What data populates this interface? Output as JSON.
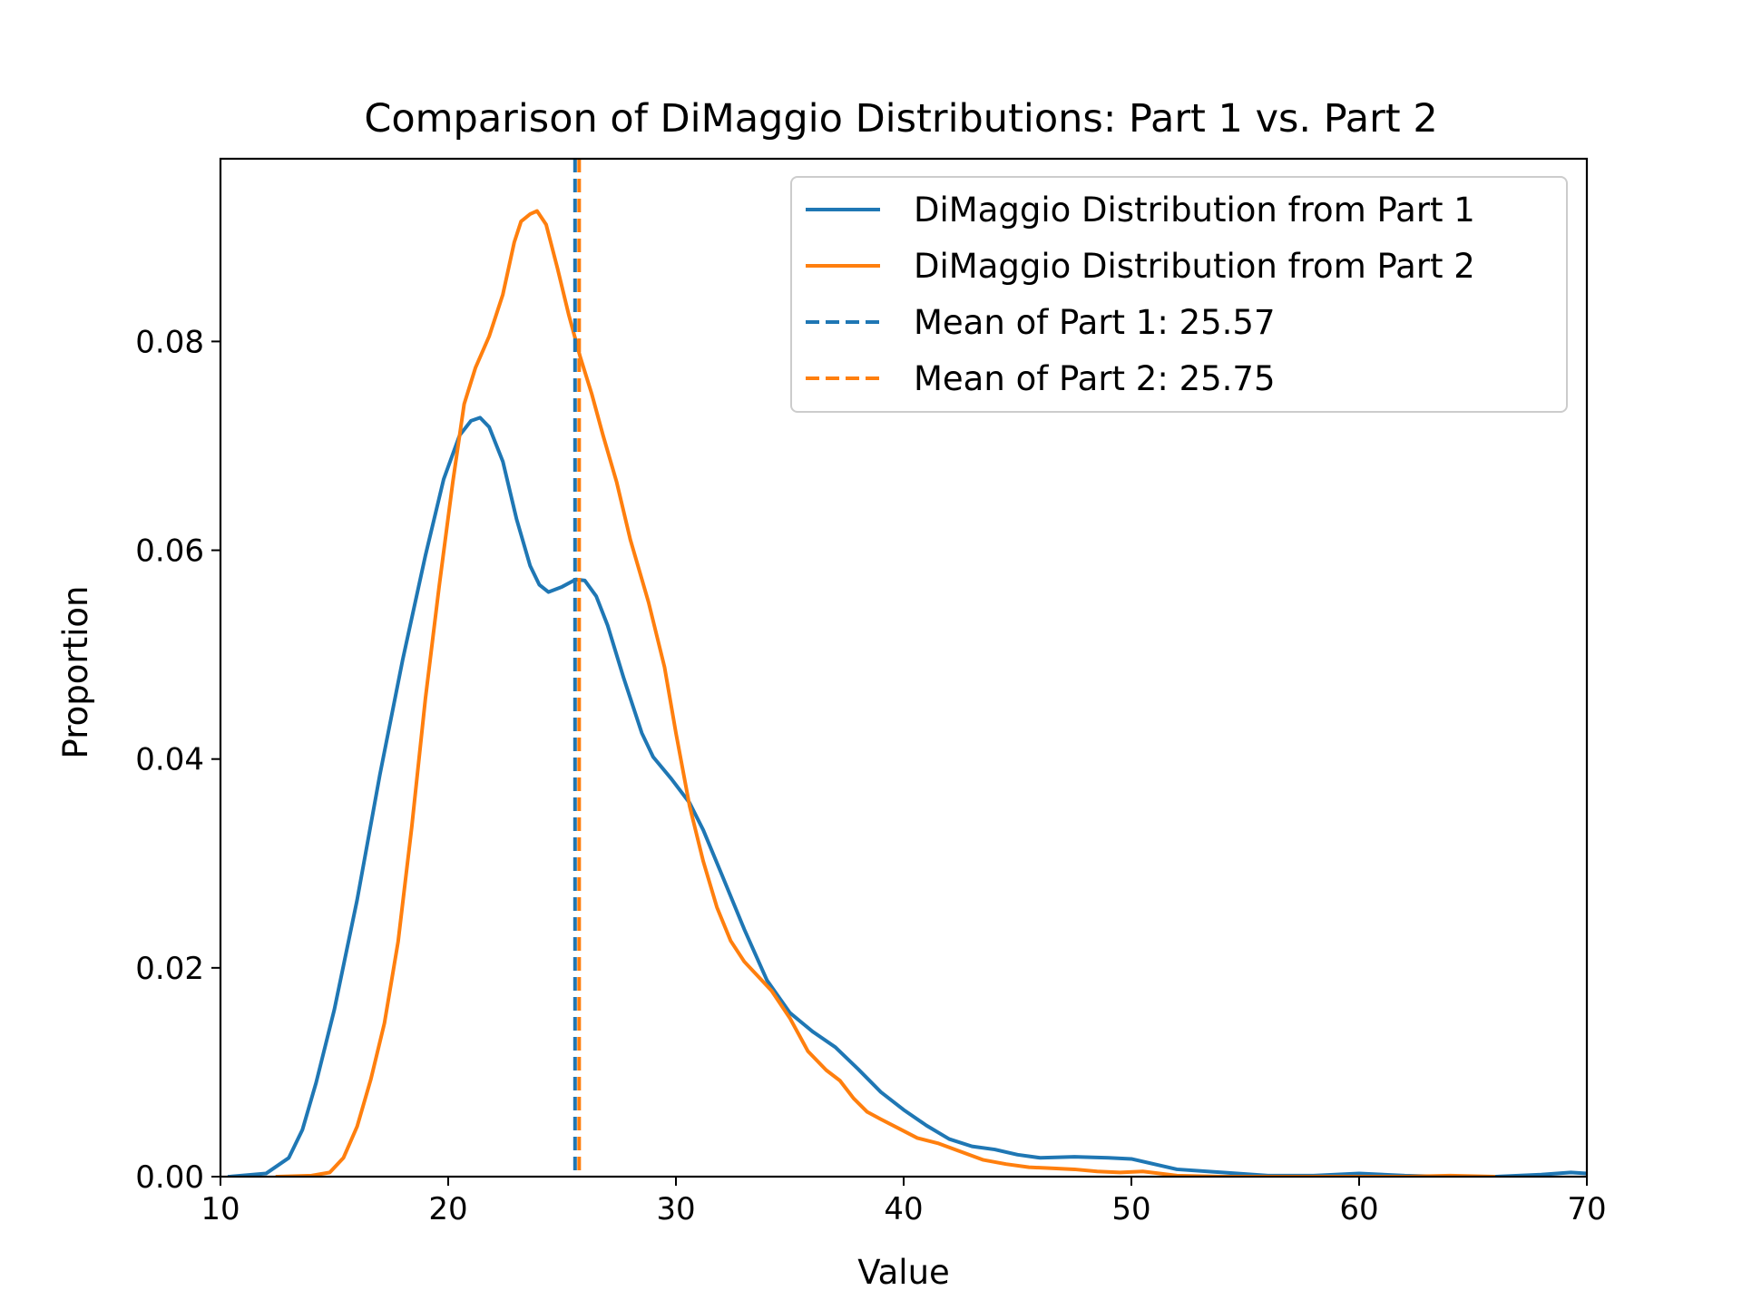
{
  "chart_data": {
    "type": "line",
    "title": "Comparison of DiMaggio Distributions: Part 1 vs. Part 2",
    "xlabel": "Value",
    "ylabel": "Proportion",
    "xlim": [
      10,
      70
    ],
    "ylim": [
      0,
      0.0975
    ],
    "xticks": [
      10,
      20,
      30,
      40,
      50,
      60,
      70
    ],
    "xtick_labels": [
      "10",
      "20",
      "30",
      "40",
      "50",
      "60",
      "70"
    ],
    "yticks": [
      0,
      0.02,
      0.04,
      0.06,
      0.08
    ],
    "ytick_labels": [
      "0.00",
      "0.02",
      "0.04",
      "0.06",
      "0.08"
    ],
    "grid": false,
    "legend_position": "top-right",
    "series": [
      {
        "name": "DiMaggio Distribution from Part 1",
        "color": "#1f77b4",
        "style": "solid",
        "points": [
          [
            10.4,
            0.0
          ],
          [
            12.0,
            0.0003
          ],
          [
            13.0,
            0.0018
          ],
          [
            13.6,
            0.0045
          ],
          [
            14.2,
            0.009
          ],
          [
            15.0,
            0.016
          ],
          [
            16.0,
            0.0265
          ],
          [
            17.0,
            0.0385
          ],
          [
            18.0,
            0.0495
          ],
          [
            19.0,
            0.0595
          ],
          [
            19.8,
            0.0668
          ],
          [
            20.5,
            0.071
          ],
          [
            21.0,
            0.0724
          ],
          [
            21.4,
            0.0727
          ],
          [
            21.8,
            0.0718
          ],
          [
            22.4,
            0.0685
          ],
          [
            23.0,
            0.063
          ],
          [
            23.6,
            0.0585
          ],
          [
            24.0,
            0.0567
          ],
          [
            24.4,
            0.056
          ],
          [
            25.0,
            0.0565
          ],
          [
            25.6,
            0.0572
          ],
          [
            26.0,
            0.0571
          ],
          [
            26.5,
            0.0556
          ],
          [
            27.0,
            0.0528
          ],
          [
            27.7,
            0.0478
          ],
          [
            28.5,
            0.0425
          ],
          [
            29.0,
            0.0402
          ],
          [
            29.8,
            0.0381
          ],
          [
            30.6,
            0.0358
          ],
          [
            31.2,
            0.0332
          ],
          [
            32.0,
            0.029
          ],
          [
            33.0,
            0.0237
          ],
          [
            34.0,
            0.0188
          ],
          [
            35.0,
            0.0157
          ],
          [
            36.0,
            0.0139
          ],
          [
            37.0,
            0.0124
          ],
          [
            38.0,
            0.0103
          ],
          [
            39.0,
            0.0081
          ],
          [
            40.0,
            0.0064
          ],
          [
            41.0,
            0.0049
          ],
          [
            42.0,
            0.0036
          ],
          [
            43.0,
            0.0029
          ],
          [
            44.0,
            0.0026
          ],
          [
            45.0,
            0.0021
          ],
          [
            46.0,
            0.0018
          ],
          [
            47.5,
            0.0019
          ],
          [
            49.0,
            0.0018
          ],
          [
            50.0,
            0.0017
          ],
          [
            51.0,
            0.0012
          ],
          [
            52.0,
            0.0007
          ],
          [
            54.0,
            0.0004
          ],
          [
            56.0,
            0.0001
          ],
          [
            58.0,
            0.0001
          ],
          [
            60.0,
            0.0003
          ],
          [
            62.0,
            0.0001
          ],
          [
            64.0,
            0.0
          ],
          [
            66.0,
            0.0
          ],
          [
            68.0,
            0.0002
          ],
          [
            69.3,
            0.0004
          ],
          [
            70.0,
            0.0003
          ]
        ]
      },
      {
        "name": "DiMaggio Distribution from Part 2",
        "color": "#ff7f0e",
        "style": "solid",
        "points": [
          [
            12.5,
            0.0
          ],
          [
            14.0,
            0.0001
          ],
          [
            14.8,
            0.0004
          ],
          [
            15.4,
            0.0018
          ],
          [
            16.0,
            0.0048
          ],
          [
            16.6,
            0.0093
          ],
          [
            17.2,
            0.0147
          ],
          [
            17.8,
            0.0225
          ],
          [
            18.4,
            0.0335
          ],
          [
            19.0,
            0.0458
          ],
          [
            19.6,
            0.0565
          ],
          [
            20.2,
            0.0665
          ],
          [
            20.7,
            0.074
          ],
          [
            21.2,
            0.0775
          ],
          [
            21.8,
            0.0805
          ],
          [
            22.4,
            0.0845
          ],
          [
            22.9,
            0.0895
          ],
          [
            23.2,
            0.0915
          ],
          [
            23.6,
            0.0922
          ],
          [
            23.9,
            0.0925
          ],
          [
            24.3,
            0.0912
          ],
          [
            24.8,
            0.087
          ],
          [
            25.3,
            0.0825
          ],
          [
            25.8,
            0.0785
          ],
          [
            26.3,
            0.075
          ],
          [
            26.8,
            0.071
          ],
          [
            27.4,
            0.0665
          ],
          [
            28.0,
            0.061
          ],
          [
            28.8,
            0.055
          ],
          [
            29.5,
            0.0488
          ],
          [
            30.0,
            0.0425
          ],
          [
            30.6,
            0.0355
          ],
          [
            31.2,
            0.0302
          ],
          [
            31.8,
            0.0258
          ],
          [
            32.4,
            0.0226
          ],
          [
            33.0,
            0.0206
          ],
          [
            33.6,
            0.0192
          ],
          [
            34.2,
            0.0178
          ],
          [
            35.0,
            0.0152
          ],
          [
            35.8,
            0.012
          ],
          [
            36.6,
            0.0102
          ],
          [
            37.2,
            0.0092
          ],
          [
            37.8,
            0.0075
          ],
          [
            38.4,
            0.0062
          ],
          [
            39.0,
            0.0055
          ],
          [
            39.8,
            0.0046
          ],
          [
            40.6,
            0.0037
          ],
          [
            41.5,
            0.0032
          ],
          [
            42.5,
            0.0024
          ],
          [
            43.5,
            0.0016
          ],
          [
            44.5,
            0.0012
          ],
          [
            45.5,
            0.0009
          ],
          [
            46.5,
            0.0008
          ],
          [
            47.5,
            0.0007
          ],
          [
            48.5,
            0.0005
          ],
          [
            49.5,
            0.0004
          ],
          [
            50.5,
            0.0005
          ],
          [
            52.0,
            0.0001
          ],
          [
            54.0,
            0.0
          ],
          [
            56.0,
            0.0
          ],
          [
            58.0,
            0.0
          ],
          [
            60.0,
            0.0
          ],
          [
            62.0,
            0.0
          ],
          [
            64.0,
            0.0001
          ],
          [
            65.9,
            0.0
          ]
        ]
      }
    ],
    "reference_lines": [
      {
        "name": "Mean of Part 1: 25.57",
        "orientation": "vertical",
        "x": 25.57,
        "color": "#1f77b4",
        "style": "dashed"
      },
      {
        "name": "Mean of Part 2: 25.75",
        "orientation": "vertical",
        "x": 25.75,
        "color": "#ff7f0e",
        "style": "dashed"
      }
    ]
  }
}
